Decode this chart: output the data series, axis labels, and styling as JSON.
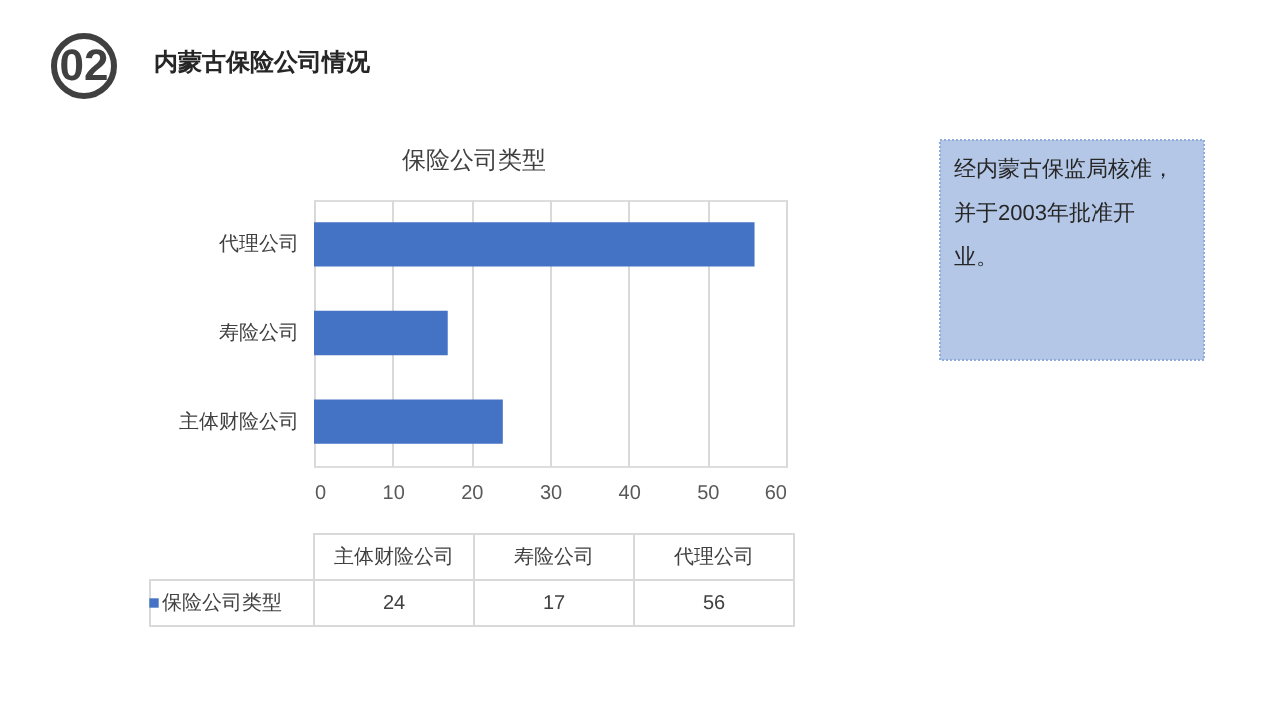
{
  "chart_data": [
    {
      "type": "bar",
      "orientation": "horizontal",
      "title": "保险公司类型",
      "categories": [
        "代理公司",
        "寿险公司",
        "主体财险公司"
      ],
      "series": [
        {
          "color": "#4472c4",
          "values": [
            56,
            17,
            24
          ]
        }
      ],
      "xlim": [
        0,
        60
      ],
      "xticks": [
        0,
        10,
        20,
        30,
        40,
        50,
        60
      ],
      "grid": "x",
      "annotations": [
        "02",
        "内蒙古保险公司情况",
        "经内蒙古保监局核准，并于2003年批准开业。"
      ]
    },
    {
      "type": "other",
      "categories": [
        "主体财险公司",
        "寿险公司",
        "代理公司"
      ],
      "series": [
        {
          "name": "保险公司类型",
          "color": "#4472c4",
          "values": [
            24,
            17,
            56
          ]
        }
      ],
      "legend": "bottom left",
      "data_labels": true
    }
  ]
}
